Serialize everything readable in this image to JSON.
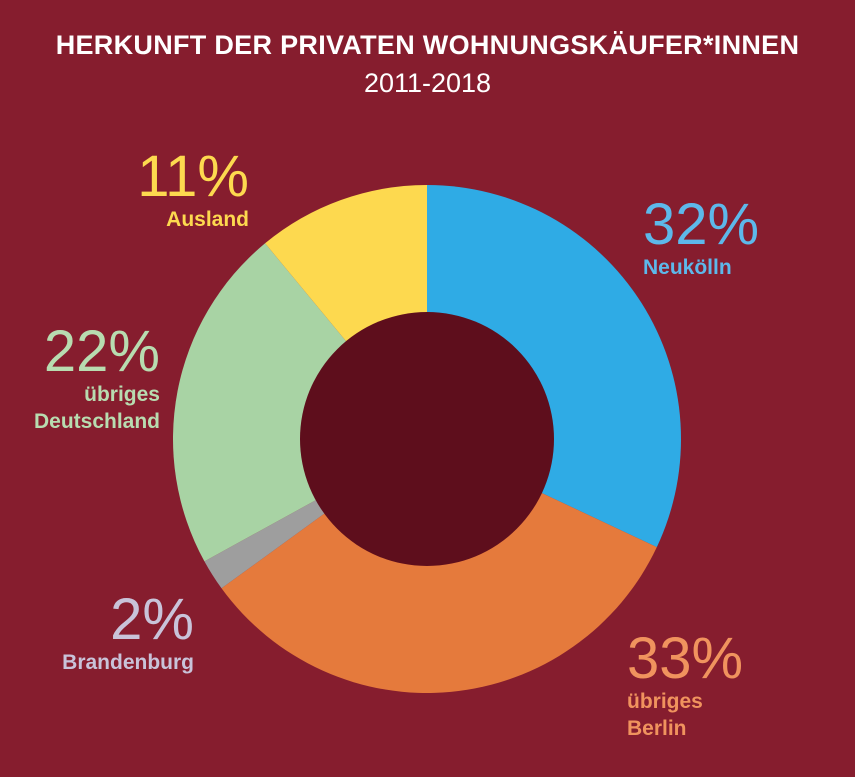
{
  "chart_data": {
    "type": "pie",
    "title": "HERKUNFT DER PRIVATEN WOHNUNGSKÄUFER*INNEN",
    "subtitle": "2011-2018",
    "slices": [
      {
        "label_lines": [
          "Neukölln"
        ],
        "percent_text": "32%",
        "value": 32,
        "color": "#2fabe5",
        "label_color": "#5db8ea"
      },
      {
        "label_lines": [
          "übriges",
          "Berlin"
        ],
        "percent_text": "33%",
        "value": 33,
        "color": "#e57a3c",
        "label_color": "#f0935e"
      },
      {
        "label_lines": [
          "Brandenburg"
        ],
        "percent_text": "2%",
        "value": 2,
        "color": "#9e9e9e",
        "label_color": "#c9c3d9"
      },
      {
        "label_lines": [
          "übriges",
          "Deutschland"
        ],
        "percent_text": "22%",
        "value": 22,
        "color": "#a8d3a4",
        "label_color": "#b8dcb0"
      },
      {
        "label_lines": [
          "Ausland"
        ],
        "percent_text": "11%",
        "value": 11,
        "color": "#fdd94f",
        "label_color": "#fdd94f"
      }
    ],
    "hole_color": "#5e0e1c",
    "background": "#861d2e"
  }
}
